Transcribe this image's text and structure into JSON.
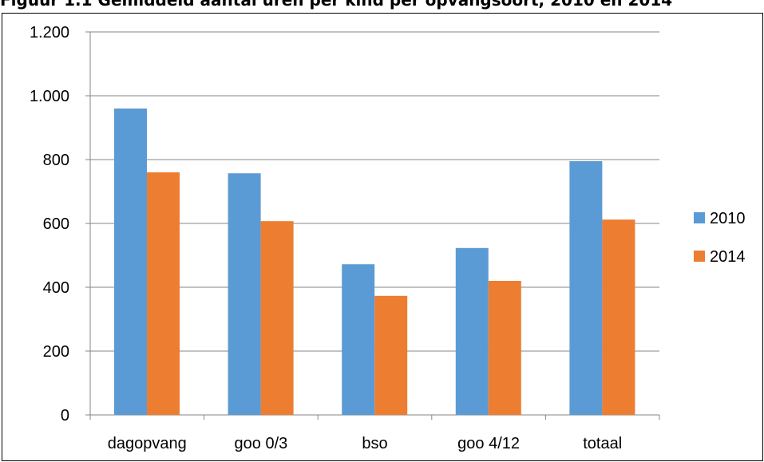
{
  "figure": {
    "title": "Figuur 1.1 Gemiddeld aantal uren per kind per opvangsoort, 2010 en 2014"
  },
  "chart_data": {
    "type": "bar",
    "title": "Figuur 1.1 Gemiddeld aantal uren per kind per opvangsoort, 2010 en 2014",
    "xlabel": "",
    "ylabel": "",
    "categories": [
      "dagopvang",
      "goo 0/3",
      "bso",
      "goo 4/12",
      "totaal"
    ],
    "series": [
      {
        "name": "2010",
        "color": "#5B9BD5",
        "values": [
          960,
          757,
          472,
          523,
          795
        ]
      },
      {
        "name": "2014",
        "color": "#ED7D31",
        "values": [
          760,
          607,
          373,
          420,
          612
        ]
      }
    ],
    "ylim": [
      0,
      1200
    ],
    "yticks": [
      0,
      200,
      400,
      600,
      800,
      1000,
      1200
    ],
    "ytick_labels": [
      "0",
      "200",
      "400",
      "600",
      "800",
      "1.000",
      "1.200"
    ],
    "grid": "horizontal",
    "grid_color": "#868686",
    "legend_placement": "right"
  }
}
